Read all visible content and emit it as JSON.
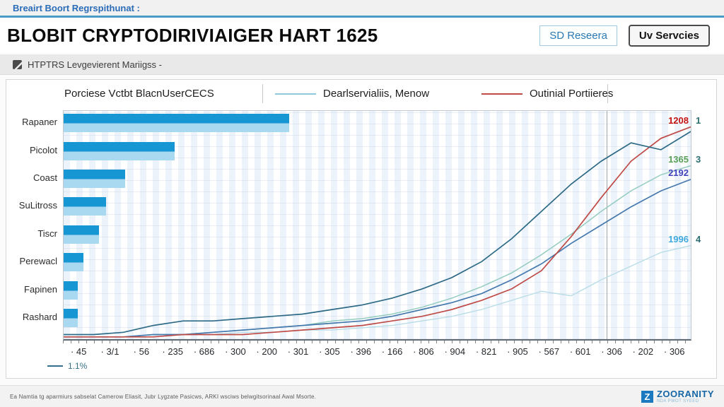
{
  "top_bar": {
    "link": "Breairt Boort Regrspithunat :"
  },
  "header": {
    "title": "BLOBIT CRYPTODIRIVIAIGER HART 1625",
    "buttons": [
      {
        "label": "SD Reseera"
      },
      {
        "label": "Uv Servcies"
      }
    ]
  },
  "toolbar": {
    "label": "HTPTRS Levgevierent Mariigss -",
    "icon": "external-link-icon"
  },
  "legend": {
    "items": [
      {
        "label": "Porciese Vctbt BlacnUserCECS",
        "swatch": null
      },
      {
        "label": "Dearlservialiis, Menow",
        "swatch": "#8fcadb"
      },
      {
        "label": "Outinial Portiieres",
        "swatch": "#bf4b47"
      }
    ]
  },
  "chart_data": [
    {
      "type": "bar",
      "orientation": "horizontal",
      "categories": [
        "Rapaner",
        "Picolot",
        "Coast",
        "SuLitross",
        "Tiscr",
        "Perewacl",
        "Fapinen",
        "Rashard"
      ],
      "values": [
        36,
        17.7,
        9.8,
        6.8,
        5.6,
        3.2,
        2.3,
        2.3
      ],
      "value_unit": "percent-of-x-axis",
      "colors": {
        "top": "#1697d4",
        "bottom": "#a9d9f1"
      }
    },
    {
      "type": "line",
      "tick_prefix": "·",
      "x_tick_labels": [
        "45",
        "3/1",
        "56",
        "235",
        "686",
        "300",
        "200",
        "301",
        "305",
        "396",
        "166",
        "806",
        "904",
        "821",
        "905",
        "567",
        "601",
        "306",
        "202",
        "306"
      ],
      "ylim": [
        0,
        100
      ],
      "grid": "vertical-stripes",
      "vline_x_frac": 0.866,
      "series": [
        {
          "name": "cyan",
          "color": "#b8dde6",
          "width": 1.4,
          "values": [
            1,
            1,
            1,
            2,
            2,
            2,
            3,
            3,
            4,
            4,
            5,
            6,
            8,
            10,
            13,
            17,
            21,
            19,
            26,
            32,
            38,
            41
          ]
        },
        {
          "name": "ltgreen",
          "color": "#94ccc0",
          "width": 1.5,
          "values": [
            1,
            1,
            1,
            2,
            2,
            3,
            4,
            5,
            6,
            8,
            9,
            11,
            14,
            18,
            23,
            29,
            37,
            46,
            56,
            65,
            72,
            76
          ]
        },
        {
          "name": "steel",
          "color": "#4679ad",
          "width": 1.7,
          "values": [
            1,
            1,
            1,
            2,
            2,
            3,
            4,
            5,
            6,
            7,
            8,
            10,
            13,
            16,
            20,
            26,
            33,
            42,
            50,
            58,
            65,
            70
          ]
        },
        {
          "name": "red",
          "color": "#bf4b47",
          "width": 1.7,
          "values": [
            1,
            1,
            1,
            1,
            2,
            2,
            2,
            3,
            4,
            5,
            6,
            8,
            10,
            13,
            17,
            22,
            30,
            45,
            62,
            78,
            88,
            93
          ]
        },
        {
          "name": "navy",
          "color": "#2d6a85",
          "width": 1.7,
          "values": [
            2,
            2,
            3,
            6,
            8,
            8,
            9,
            10,
            11,
            13,
            15,
            18,
            22,
            27,
            34,
            44,
            56,
            68,
            78,
            86,
            83,
            91
          ]
        }
      ],
      "end_labels": [
        {
          "text": "1208",
          "rank": "1",
          "color": "#c41212",
          "series": "red"
        },
        {
          "text": "1365",
          "rank": "3",
          "color": "#58a058",
          "series": "ltgreen"
        },
        {
          "text": "2192",
          "rank": "",
          "color": "#4242bd",
          "series": "steel"
        },
        {
          "text": "1996",
          "rank": "4",
          "color": "#3fa9dc",
          "series": "cyan"
        }
      ]
    }
  ],
  "sub_legend": {
    "label": "1.1%"
  },
  "footer": {
    "note": "Ea Namtia tg aparmiurs sabselat Camerow Eliasit, Jubr Lygzate Pasicws, ARKI wsciws belwgitsorinaal Awal Msorte.",
    "logo": {
      "mark": "Z",
      "name": "ZOORANITY",
      "tagline": "NDA PWOT SYEED"
    }
  }
}
